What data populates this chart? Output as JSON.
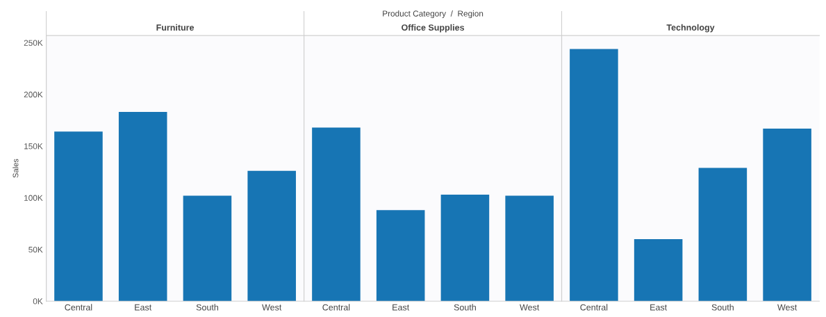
{
  "chart_data": [
    {
      "type": "bar",
      "title": "Furniture",
      "ylabel": "Sales",
      "annotations": [
        "Product Category  /  Region"
      ],
      "categories": [
        "Central",
        "East",
        "South",
        "West"
      ],
      "values": [
        164000,
        183000,
        102000,
        126000
      ],
      "color": "#1775b4",
      "ylim": [
        0,
        257000
      ],
      "yticks": [
        {
          "value": 0,
          "label": "0K"
        },
        {
          "value": 50000,
          "label": "50K"
        },
        {
          "value": 100000,
          "label": "100K"
        },
        {
          "value": 150000,
          "label": "150K"
        },
        {
          "value": 200000,
          "label": "200K"
        },
        {
          "value": 250000,
          "label": "250K"
        }
      ]
    },
    {
      "type": "bar",
      "title": "Office Supplies",
      "categories": [
        "Central",
        "East",
        "South",
        "West"
      ],
      "values": [
        168000,
        88000,
        103000,
        102000
      ],
      "color": "#1775b4",
      "ylim": [
        0,
        257000
      ],
      "tick_labels": "x"
    },
    {
      "type": "bar",
      "title": "Technology",
      "categories": [
        "Central",
        "East",
        "South",
        "West"
      ],
      "values": [
        244000,
        60000,
        129000,
        167000
      ],
      "color": "#1775b4",
      "ylim": [
        0,
        257000
      ],
      "tick_labels": "x"
    }
  ]
}
